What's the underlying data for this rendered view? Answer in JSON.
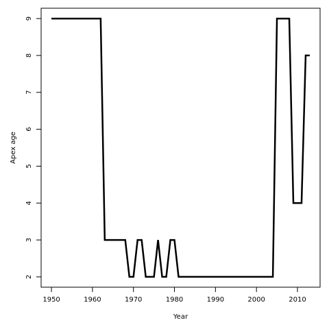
{
  "chart_data": {
    "type": "line",
    "xlabel": "Year",
    "ylabel": "Apex age",
    "x": [
      1950,
      1951,
      1952,
      1953,
      1954,
      1955,
      1956,
      1957,
      1958,
      1959,
      1960,
      1961,
      1962,
      1963,
      1964,
      1965,
      1966,
      1967,
      1968,
      1969,
      1970,
      1971,
      1972,
      1973,
      1974,
      1975,
      1976,
      1977,
      1978,
      1979,
      1980,
      1981,
      1982,
      1983,
      1984,
      1985,
      1986,
      1987,
      1988,
      1989,
      1990,
      1991,
      1992,
      1993,
      1994,
      1995,
      1996,
      1997,
      1998,
      1999,
      2000,
      2001,
      2002,
      2003,
      2004,
      2005,
      2006,
      2007,
      2008,
      2009,
      2010,
      2011,
      2012,
      2013
    ],
    "series": [
      {
        "color": "#000000",
        "values": [
          9,
          9,
          9,
          9,
          9,
          9,
          9,
          9,
          9,
          9,
          9,
          9,
          9,
          3,
          3,
          3,
          3,
          3,
          3,
          2,
          2,
          3,
          3,
          2,
          2,
          2,
          3,
          2,
          2,
          3,
          3,
          2,
          2,
          2,
          2,
          2,
          2,
          2,
          2,
          2,
          2,
          2,
          2,
          2,
          2,
          2,
          2,
          2,
          2,
          2,
          2,
          2,
          2,
          2,
          2,
          9,
          9,
          9,
          9,
          4,
          4,
          4,
          8,
          8
        ]
      }
    ],
    "xlim": [
      1947.48,
      2015.52
    ],
    "xticks": [
      1950,
      1960,
      1970,
      1980,
      1990,
      2000,
      2010
    ],
    "ylim": [
      1.72,
      9.28
    ],
    "yticks": [
      2,
      3,
      4,
      5,
      6,
      7,
      8,
      9
    ]
  }
}
